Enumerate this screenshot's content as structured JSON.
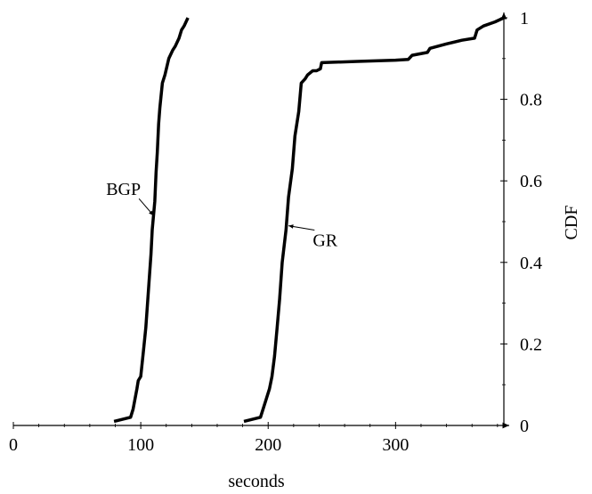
{
  "chart_data": {
    "type": "line",
    "title": "",
    "xlabel": "seconds",
    "ylabel": "CDF",
    "xlim": [
      0,
      385
    ],
    "ylim": [
      0,
      1
    ],
    "x_ticks": [
      "0",
      "100",
      "200",
      "300"
    ],
    "y_ticks": [
      "0",
      "0.2",
      "0.4",
      "0.6",
      "0.8",
      "1"
    ],
    "y_axis_position": "right",
    "grid": false,
    "legend": "none",
    "series": [
      {
        "name": "BGP",
        "color": "#000000",
        "points": [
          [
            79,
            0.01
          ],
          [
            92,
            0.02
          ],
          [
            94,
            0.04
          ],
          [
            97,
            0.09
          ],
          [
            98,
            0.11
          ],
          [
            100,
            0.12
          ],
          [
            102,
            0.18
          ],
          [
            104,
            0.24
          ],
          [
            106,
            0.33
          ],
          [
            108,
            0.42
          ],
          [
            109,
            0.48
          ],
          [
            111,
            0.55
          ],
          [
            112,
            0.62
          ],
          [
            113,
            0.67
          ],
          [
            114,
            0.74
          ],
          [
            115,
            0.78
          ],
          [
            117,
            0.84
          ],
          [
            119,
            0.86
          ],
          [
            122,
            0.9
          ],
          [
            125,
            0.92
          ],
          [
            127,
            0.93
          ],
          [
            130,
            0.95
          ],
          [
            132,
            0.97
          ],
          [
            134,
            0.98
          ],
          [
            137,
            1.0
          ]
        ]
      },
      {
        "name": "GR",
        "color": "#000000",
        "points": [
          [
            181,
            0.01
          ],
          [
            194,
            0.02
          ],
          [
            196,
            0.04
          ],
          [
            198,
            0.06
          ],
          [
            201,
            0.09
          ],
          [
            203,
            0.12
          ],
          [
            205,
            0.17
          ],
          [
            207,
            0.24
          ],
          [
            209,
            0.31
          ],
          [
            211,
            0.4
          ],
          [
            214,
            0.48
          ],
          [
            216,
            0.56
          ],
          [
            219,
            0.63
          ],
          [
            221,
            0.71
          ],
          [
            224,
            0.77
          ],
          [
            226,
            0.84
          ],
          [
            229,
            0.85
          ],
          [
            231,
            0.86
          ],
          [
            235,
            0.87
          ],
          [
            238,
            0.87
          ],
          [
            241,
            0.875
          ],
          [
            242,
            0.89
          ],
          [
            270,
            0.893
          ],
          [
            300,
            0.896
          ],
          [
            310,
            0.898
          ],
          [
            313,
            0.908
          ],
          [
            325,
            0.915
          ],
          [
            327,
            0.925
          ],
          [
            340,
            0.936
          ],
          [
            352,
            0.945
          ],
          [
            362,
            0.95
          ],
          [
            364,
            0.97
          ],
          [
            369,
            0.98
          ],
          [
            378,
            0.99
          ],
          [
            385,
            1.0
          ]
        ]
      }
    ],
    "annotations": [
      {
        "text": "BGP",
        "series": "BGP",
        "label_at": [
          100,
          0.565
        ],
        "arrow_to": [
          110,
          0.515
        ]
      },
      {
        "text": "GR",
        "series": "GR",
        "label_at": [
          235,
          0.44
        ],
        "arrow_to": [
          216,
          0.49
        ]
      }
    ]
  }
}
